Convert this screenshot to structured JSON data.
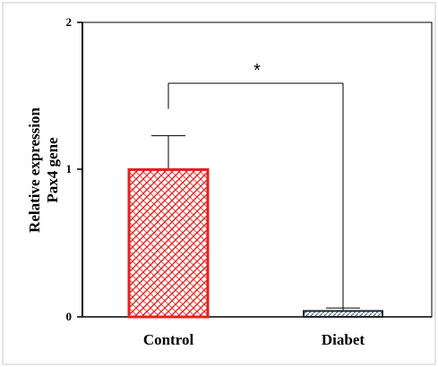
{
  "chart_data": {
    "type": "bar",
    "title": "",
    "categories": [
      "Control",
      "Diabet"
    ],
    "values": [
      1.0,
      0.04
    ],
    "error_upper": [
      0.23,
      0.02
    ],
    "ylabel_lines": [
      "Relative expression",
      "Pax4  gene"
    ],
    "xlabel": "",
    "ylim": [
      0,
      2
    ],
    "yticks": [
      "0",
      "1",
      "2"
    ],
    "grid": false,
    "significance": {
      "label": "*",
      "between": [
        "Control",
        "Diabet"
      ]
    },
    "colors": {
      "control_fill": "#e8201c",
      "diabet_fill": "#5a7f99",
      "outline": "#000000",
      "frame": "#c8c8c8"
    }
  }
}
